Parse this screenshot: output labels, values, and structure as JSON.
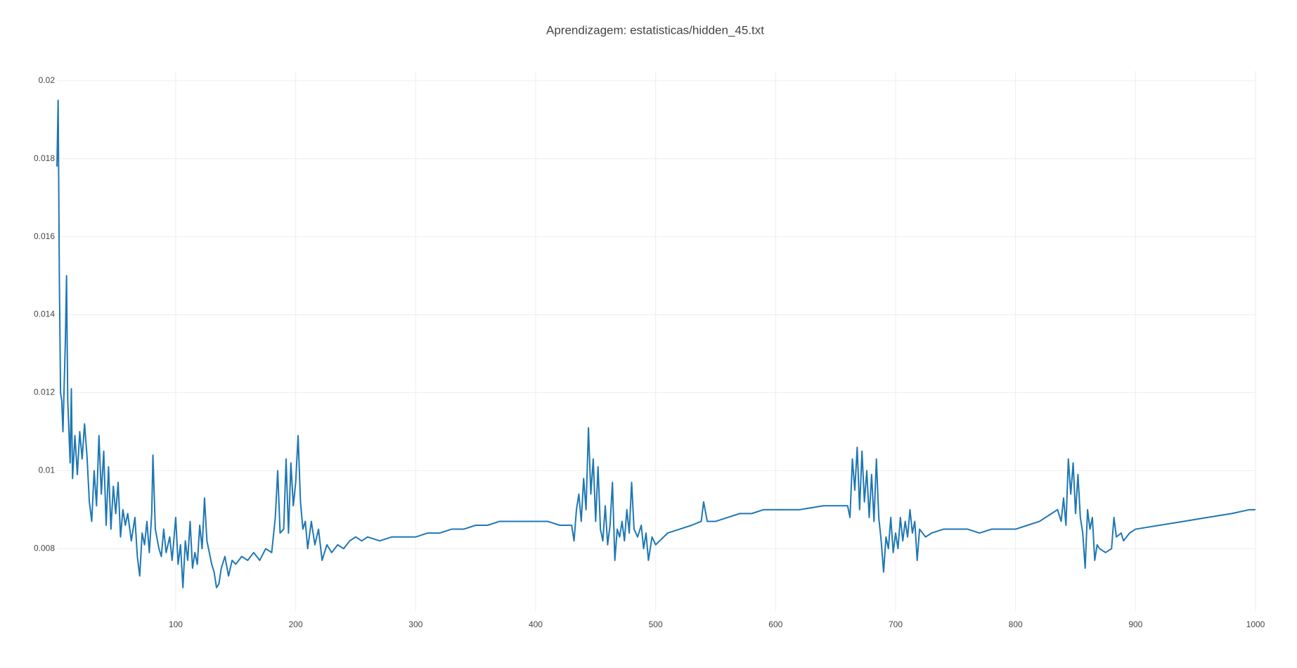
{
  "chart_data": {
    "type": "line",
    "title": "Aprendizagem: estatisticas/hidden_45.txt",
    "color": "#1f77b4",
    "grid": true,
    "xlim": [
      1,
      1000
    ],
    "xticks": [
      100,
      200,
      300,
      400,
      500,
      600,
      700,
      800,
      900,
      1000
    ],
    "ylim": [
      0.0064,
      0.02025
    ],
    "yticks": [
      0.008,
      0.01,
      0.012,
      0.014,
      0.016,
      0.018,
      0.02
    ],
    "x": [
      1,
      2,
      3,
      4,
      5,
      6,
      8,
      9,
      10,
      12,
      13,
      14,
      16,
      18,
      20,
      22,
      24,
      26,
      28,
      30,
      32,
      34,
      36,
      38,
      40,
      42,
      44,
      46,
      48,
      50,
      52,
      54,
      56,
      58,
      60,
      63,
      66,
      68,
      70,
      72,
      74,
      76,
      78,
      80,
      81,
      83,
      86,
      88,
      90,
      92,
      95,
      97,
      100,
      102,
      104,
      106,
      108,
      110,
      112,
      114,
      116,
      118,
      120,
      122,
      124,
      126,
      128,
      130,
      132,
      134,
      136,
      138,
      141,
      144,
      147,
      150,
      155,
      160,
      165,
      170,
      175,
      180,
      183,
      185,
      187,
      190,
      192,
      194,
      196,
      198,
      200,
      202,
      204,
      206,
      208,
      210,
      213,
      216,
      219,
      222,
      226,
      230,
      235,
      240,
      245,
      250,
      255,
      260,
      270,
      280,
      290,
      300,
      310,
      320,
      330,
      340,
      350,
      360,
      370,
      380,
      390,
      400,
      410,
      420,
      430,
      432,
      434,
      436,
      438,
      440,
      442,
      444,
      446,
      448,
      450,
      452,
      454,
      456,
      458,
      460,
      462,
      464,
      466,
      468,
      470,
      472,
      474,
      476,
      478,
      480,
      482,
      485,
      488,
      490,
      492,
      494,
      497,
      500,
      510,
      520,
      530,
      538,
      540,
      543,
      550,
      560,
      570,
      580,
      590,
      600,
      620,
      640,
      660,
      662,
      664,
      666,
      668,
      670,
      672,
      674,
      676,
      678,
      680,
      682,
      684,
      686,
      688,
      690,
      692,
      694,
      696,
      698,
      700,
      702,
      704,
      706,
      708,
      710,
      712,
      714,
      716,
      718,
      720,
      725,
      730,
      740,
      750,
      760,
      770,
      780,
      790,
      800,
      810,
      820,
      830,
      835,
      838,
      840,
      842,
      844,
      846,
      848,
      850,
      852,
      854,
      856,
      858,
      860,
      862,
      864,
      866,
      868,
      870,
      875,
      880,
      882,
      884,
      888,
      890,
      895,
      900,
      920,
      940,
      960,
      980,
      995,
      1000
    ],
    "values": [
      0.0178,
      0.0195,
      0.015,
      0.012,
      0.0118,
      0.011,
      0.0133,
      0.015,
      0.0118,
      0.0102,
      0.0121,
      0.0098,
      0.0109,
      0.0099,
      0.011,
      0.0103,
      0.0112,
      0.0104,
      0.0092,
      0.0087,
      0.01,
      0.0091,
      0.0109,
      0.0094,
      0.0105,
      0.0086,
      0.0101,
      0.0085,
      0.0096,
      0.0089,
      0.0097,
      0.0083,
      0.009,
      0.0086,
      0.0089,
      0.0082,
      0.0088,
      0.0078,
      0.0073,
      0.0084,
      0.0081,
      0.0087,
      0.0079,
      0.0089,
      0.0104,
      0.0085,
      0.008,
      0.0078,
      0.0085,
      0.0079,
      0.0083,
      0.0077,
      0.0088,
      0.0076,
      0.0081,
      0.007,
      0.0082,
      0.0077,
      0.0087,
      0.0075,
      0.0079,
      0.0076,
      0.0086,
      0.008,
      0.0093,
      0.0082,
      0.0079,
      0.0076,
      0.0074,
      0.007,
      0.0071,
      0.0075,
      0.0078,
      0.0073,
      0.0077,
      0.0076,
      0.0078,
      0.0077,
      0.0079,
      0.0077,
      0.008,
      0.0079,
      0.0088,
      0.01,
      0.0084,
      0.0085,
      0.0103,
      0.0084,
      0.0102,
      0.0091,
      0.0097,
      0.0109,
      0.0092,
      0.0085,
      0.0087,
      0.008,
      0.0087,
      0.0081,
      0.0085,
      0.0077,
      0.0081,
      0.0079,
      0.0081,
      0.008,
      0.0082,
      0.0083,
      0.0082,
      0.0083,
      0.0082,
      0.0083,
      0.0083,
      0.0083,
      0.0084,
      0.0084,
      0.0085,
      0.0085,
      0.0086,
      0.0086,
      0.0087,
      0.0087,
      0.0087,
      0.0087,
      0.0087,
      0.0086,
      0.0086,
      0.0082,
      0.009,
      0.0094,
      0.0087,
      0.0098,
      0.009,
      0.0111,
      0.0094,
      0.0103,
      0.0087,
      0.0101,
      0.0085,
      0.0082,
      0.0091,
      0.0081,
      0.0086,
      0.0097,
      0.0077,
      0.0085,
      0.0083,
      0.0087,
      0.0082,
      0.009,
      0.0084,
      0.0097,
      0.0085,
      0.0083,
      0.0086,
      0.008,
      0.0084,
      0.0077,
      0.0083,
      0.0081,
      0.0084,
      0.0085,
      0.0086,
      0.0087,
      0.0092,
      0.0087,
      0.0087,
      0.0088,
      0.0089,
      0.0089,
      0.009,
      0.009,
      0.009,
      0.0091,
      0.0091,
      0.0088,
      0.0103,
      0.0095,
      0.0106,
      0.009,
      0.0105,
      0.0092,
      0.01,
      0.0088,
      0.0099,
      0.0087,
      0.0103,
      0.0088,
      0.0082,
      0.0074,
      0.0083,
      0.008,
      0.0088,
      0.0079,
      0.0084,
      0.008,
      0.0088,
      0.0082,
      0.0087,
      0.0083,
      0.009,
      0.0084,
      0.0087,
      0.0077,
      0.0085,
      0.0083,
      0.0084,
      0.0085,
      0.0085,
      0.0085,
      0.0084,
      0.0085,
      0.0085,
      0.0085,
      0.0086,
      0.0087,
      0.0089,
      0.009,
      0.0087,
      0.0093,
      0.0086,
      0.0103,
      0.0094,
      0.0102,
      0.0089,
      0.0099,
      0.0088,
      0.0084,
      0.0075,
      0.009,
      0.0085,
      0.0088,
      0.0077,
      0.0081,
      0.008,
      0.0079,
      0.008,
      0.0088,
      0.0083,
      0.0084,
      0.0082,
      0.0084,
      0.0085,
      0.0086,
      0.0087,
      0.0088,
      0.0089,
      0.009,
      0.009
    ]
  }
}
